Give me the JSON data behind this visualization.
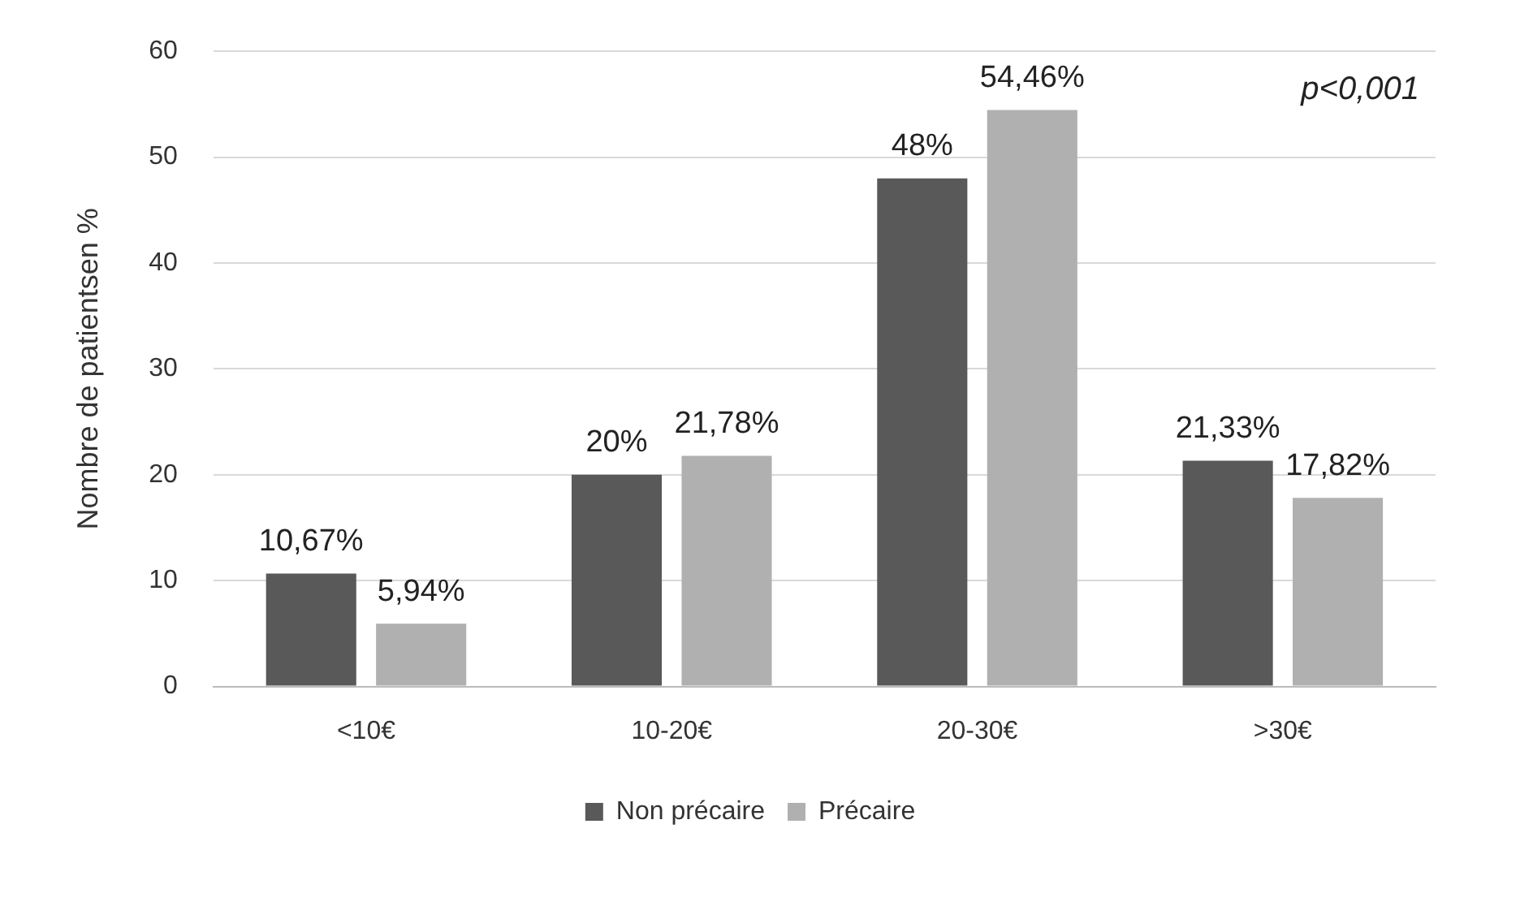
{
  "chart_data": {
    "type": "bar",
    "ylabel": "Nombre de patientsen %",
    "categories": [
      "<10€",
      "10-20€",
      "20-30€",
      ">30€"
    ],
    "series": [
      {
        "name": "Non précaire",
        "color": "#595959",
        "values": [
          10.67,
          20,
          48,
          21.33
        ],
        "value_labels": [
          "10,67%",
          "20%",
          "48%",
          "21,33%"
        ]
      },
      {
        "name": "Précaire",
        "color": "#b0b0b0",
        "values": [
          5.94,
          21.78,
          54.46,
          17.82
        ],
        "value_labels": [
          "5,94%",
          "21,78%",
          "54,46%",
          "17,82%"
        ]
      }
    ],
    "ylim": [
      0,
      60
    ],
    "yticks": [
      0,
      10,
      20,
      30,
      40,
      50,
      60
    ],
    "grid": "y",
    "legend": "bottom",
    "annotations": [
      "p<0,001"
    ]
  }
}
